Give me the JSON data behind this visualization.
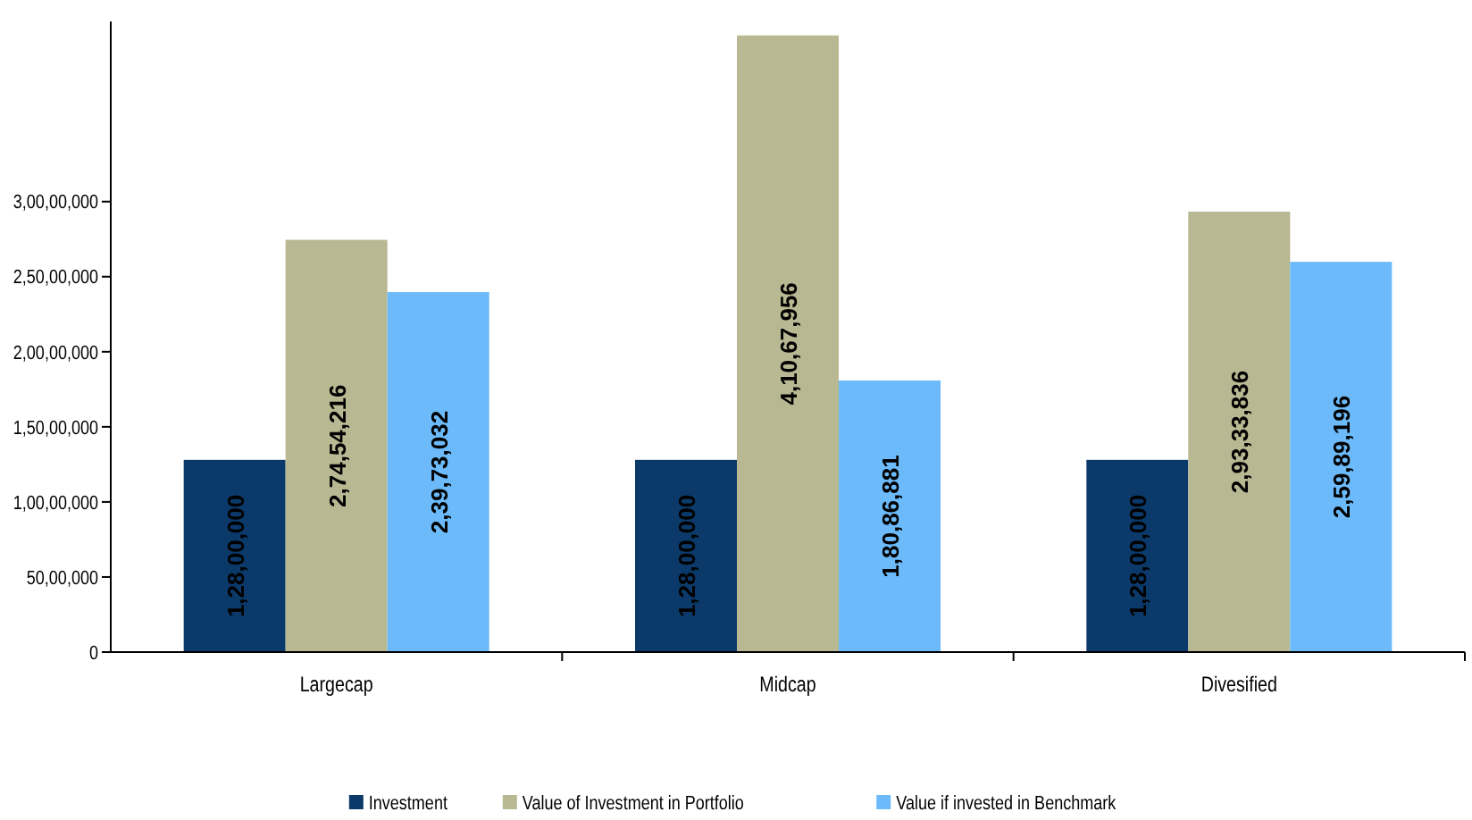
{
  "chart_data": {
    "type": "bar",
    "categories": [
      "Largecap",
      "Midcap",
      "Divesified"
    ],
    "series": [
      {
        "name": "Investment",
        "color": "#0b3a6a",
        "values": [
          12800000,
          12800000,
          12800000
        ],
        "value_labels": [
          "1,28,00,000",
          "1,28,00,000",
          "1,28,00,000"
        ]
      },
      {
        "name": "Value of Investment in Portfolio",
        "color": "#b8b893",
        "values": [
          27454216,
          41067956,
          29333836
        ],
        "value_labels": [
          "2,74,54,216",
          "4,10,67,956",
          "2,93,33,836"
        ]
      },
      {
        "name": "Value if invested in Benchmark",
        "color": "#6cbaf9",
        "values": [
          23973032,
          18086881,
          25989196
        ],
        "value_labels": [
          "2,39,73,032",
          "1,80,86,881",
          "2,59,89,196"
        ]
      }
    ],
    "ylim": [
      0,
      42000000
    ],
    "yticks": [
      0,
      {
        "value": 5000000,
        "label": "50,00,000"
      },
      {
        "value": 10000000,
        "label": "1,00,00,000"
      },
      {
        "value": 15000000,
        "label": "1,50,00,000"
      },
      {
        "value": 20000000,
        "label": "2,00,00,000"
      },
      {
        "value": 25000000,
        "label": "2,50,00,000"
      },
      {
        "value": 30000000,
        "label": "3,00,00,000"
      }
    ],
    "grid": false,
    "legend": "bottom"
  }
}
